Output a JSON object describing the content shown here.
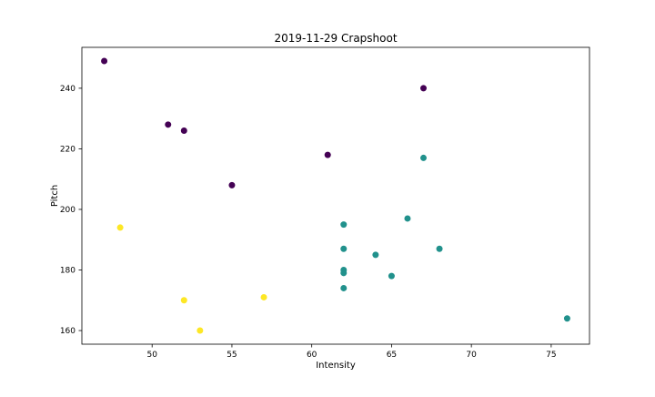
{
  "chart_data": {
    "type": "scatter",
    "title": "2019-11-29 Crapshoot",
    "xlabel": "Intensity",
    "ylabel": "Pitch",
    "xlim": [
      45.6,
      77.4
    ],
    "ylim": [
      155.5,
      253.5
    ],
    "xticks": [
      50,
      55,
      60,
      65,
      70,
      75
    ],
    "yticks": [
      160,
      180,
      200,
      220,
      240
    ],
    "grid": false,
    "legend": "none",
    "colors": [
      "#440154",
      "#21918c",
      "#fde725"
    ],
    "points": [
      {
        "x": 47,
        "y": 249,
        "c": 0
      },
      {
        "x": 51,
        "y": 228,
        "c": 0
      },
      {
        "x": 52,
        "y": 226,
        "c": 0
      },
      {
        "x": 55,
        "y": 208,
        "c": 0
      },
      {
        "x": 61,
        "y": 218,
        "c": 0
      },
      {
        "x": 67,
        "y": 240,
        "c": 0
      },
      {
        "x": 62,
        "y": 195,
        "c": 1
      },
      {
        "x": 62,
        "y": 187,
        "c": 1
      },
      {
        "x": 62,
        "y": 180,
        "c": 1
      },
      {
        "x": 62,
        "y": 179,
        "c": 1
      },
      {
        "x": 62,
        "y": 174,
        "c": 1
      },
      {
        "x": 64,
        "y": 185,
        "c": 1
      },
      {
        "x": 65,
        "y": 178,
        "c": 1
      },
      {
        "x": 66,
        "y": 197,
        "c": 1
      },
      {
        "x": 67,
        "y": 217,
        "c": 1
      },
      {
        "x": 68,
        "y": 187,
        "c": 1
      },
      {
        "x": 76,
        "y": 164,
        "c": 1
      },
      {
        "x": 48,
        "y": 194,
        "c": 2
      },
      {
        "x": 52,
        "y": 170,
        "c": 2
      },
      {
        "x": 53,
        "y": 160,
        "c": 2
      },
      {
        "x": 57,
        "y": 171,
        "c": 2
      }
    ]
  }
}
